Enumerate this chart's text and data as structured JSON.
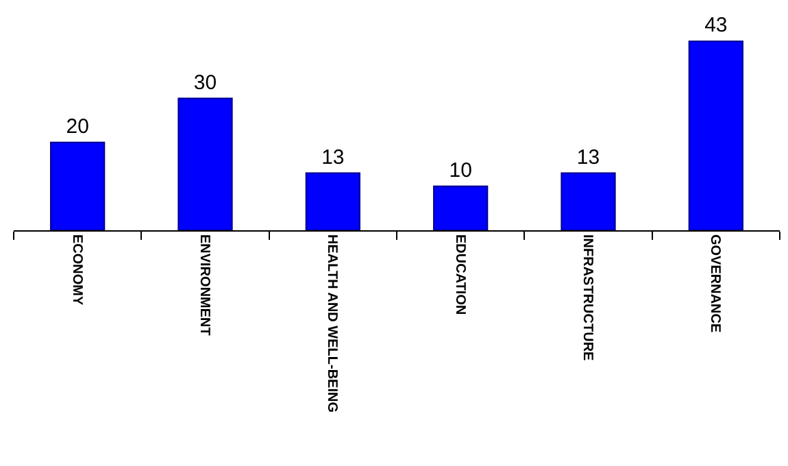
{
  "chart_data": {
    "type": "bar",
    "categories": [
      "ECONOMY",
      "ENVIRONMENT",
      "HEALTH AND WELL-BEING",
      "EDUCATION",
      "INFRASTRUCTURE",
      "GOVERNANCE"
    ],
    "values": [
      20,
      30,
      13,
      10,
      13,
      43
    ],
    "color": "#0000ff",
    "data_labels": true
  }
}
